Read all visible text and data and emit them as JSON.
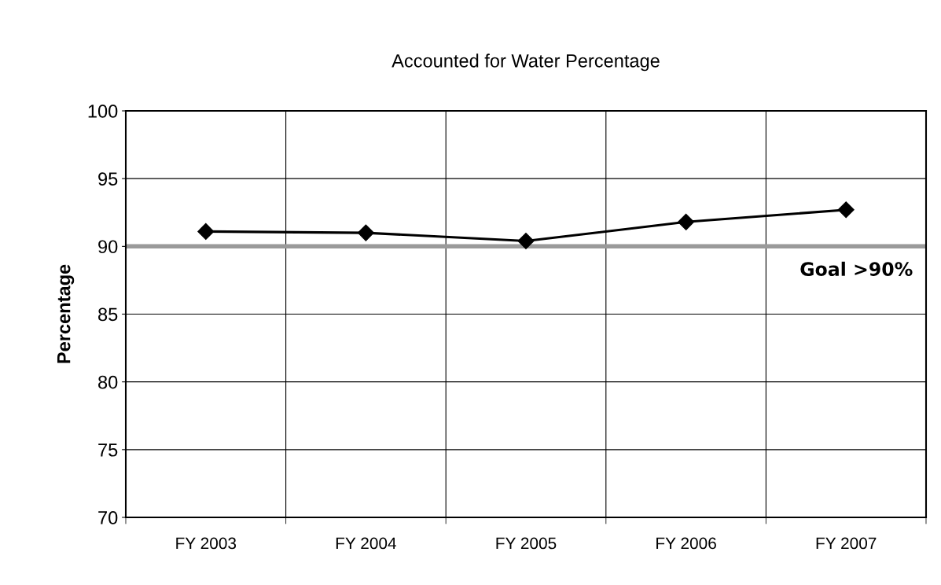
{
  "chart_data": {
    "type": "line",
    "title": "Accounted for Water Percentage",
    "ylabel": "Percentage",
    "categories": [
      "FY 2003",
      "FY 2004",
      "FY 2005",
      "FY 2006",
      "FY 2007"
    ],
    "series": [
      {
        "color": "#000000",
        "values": [
          91.1,
          91.0,
          90.4,
          91.8,
          92.7
        ]
      }
    ],
    "ylim": [
      70,
      100
    ],
    "yticks": [
      70,
      75,
      80,
      85,
      90,
      95,
      100
    ],
    "grid": true,
    "marker": "diamond",
    "line_style": "solid",
    "ref_lines": [
      {
        "axis": "y",
        "value": 90,
        "label": "Goal >90%",
        "color": "#9a9a9a",
        "line_style": "solid"
      }
    ]
  }
}
